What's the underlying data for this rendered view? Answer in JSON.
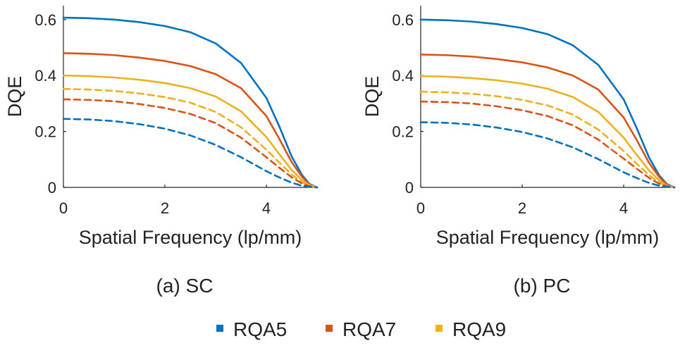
{
  "chart_data": [
    {
      "type": "line",
      "caption": "(a) SC",
      "xlabel": "Spatial Frequency  (lp/mm)",
      "ylabel": "DQE",
      "xlim": [
        0,
        5
      ],
      "ylim": [
        0,
        0.65
      ],
      "xticks": [
        0,
        2,
        4
      ],
      "xtick_labels": [
        "0",
        "2",
        "4"
      ],
      "yticks": [
        0,
        0.2,
        0.4,
        0.6
      ],
      "ytick_labels": [
        "0",
        "0.2",
        "0.4",
        "0.6"
      ],
      "grid": false,
      "x": [
        0,
        0.5,
        1.0,
        1.5,
        2.0,
        2.5,
        3.0,
        3.5,
        4.0,
        4.25,
        4.5,
        4.7,
        4.85,
        5.0
      ],
      "series": [
        {
          "name": "RQA5",
          "color": "#0072BD",
          "style": "solid",
          "values": [
            0.607,
            0.605,
            0.6,
            0.591,
            0.577,
            0.555,
            0.515,
            0.445,
            0.32,
            0.22,
            0.11,
            0.045,
            0.012,
            0.0
          ]
        },
        {
          "name": "RQA7",
          "color": "#D95319",
          "style": "solid",
          "values": [
            0.48,
            0.478,
            0.473,
            0.464,
            0.452,
            0.434,
            0.405,
            0.355,
            0.255,
            0.175,
            0.09,
            0.038,
            0.01,
            0.0
          ]
        },
        {
          "name": "RQA9",
          "color": "#EDB120",
          "style": "solid",
          "values": [
            0.4,
            0.398,
            0.393,
            0.385,
            0.373,
            0.355,
            0.325,
            0.272,
            0.18,
            0.12,
            0.062,
            0.026,
            0.008,
            0.0
          ]
        },
        {
          "name": "RQA9",
          "color": "#EDB120",
          "style": "dashed",
          "values": [
            0.352,
            0.35,
            0.345,
            0.336,
            0.323,
            0.303,
            0.27,
            0.215,
            0.135,
            0.09,
            0.046,
            0.018,
            0.005,
            0.0
          ]
        },
        {
          "name": "RQA7",
          "color": "#D95319",
          "style": "dashed",
          "values": [
            0.315,
            0.313,
            0.308,
            0.298,
            0.284,
            0.263,
            0.23,
            0.178,
            0.108,
            0.071,
            0.036,
            0.014,
            0.004,
            0.0
          ]
        },
        {
          "name": "RQA5",
          "color": "#0072BD",
          "style": "dashed",
          "values": [
            0.245,
            0.243,
            0.237,
            0.226,
            0.21,
            0.186,
            0.152,
            0.108,
            0.058,
            0.036,
            0.017,
            0.006,
            0.002,
            0.0
          ]
        }
      ]
    },
    {
      "type": "line",
      "caption": "(b) PC",
      "xlabel": "Spatial Frequency  (lp/mm)",
      "ylabel": "DQE",
      "xlim": [
        0,
        5
      ],
      "ylim": [
        0,
        0.65
      ],
      "xticks": [
        0,
        2,
        4
      ],
      "xtick_labels": [
        "0",
        "2",
        "4"
      ],
      "yticks": [
        0,
        0.2,
        0.4,
        0.6
      ],
      "ytick_labels": [
        "0",
        "0.2",
        "0.4",
        "0.6"
      ],
      "grid": false,
      "x": [
        0,
        0.5,
        1.0,
        1.5,
        2.0,
        2.5,
        3.0,
        3.5,
        4.0,
        4.25,
        4.5,
        4.7,
        4.85,
        5.0
      ],
      "series": [
        {
          "name": "RQA5",
          "color": "#0072BD",
          "style": "solid",
          "values": [
            0.6,
            0.598,
            0.593,
            0.584,
            0.57,
            0.548,
            0.508,
            0.438,
            0.315,
            0.215,
            0.107,
            0.043,
            0.012,
            0.0
          ]
        },
        {
          "name": "RQA7",
          "color": "#D95319",
          "style": "solid",
          "values": [
            0.475,
            0.473,
            0.468,
            0.459,
            0.447,
            0.429,
            0.4,
            0.35,
            0.25,
            0.172,
            0.088,
            0.037,
            0.01,
            0.0
          ]
        },
        {
          "name": "RQA9",
          "color": "#EDB120",
          "style": "solid",
          "values": [
            0.398,
            0.396,
            0.391,
            0.383,
            0.371,
            0.353,
            0.323,
            0.27,
            0.178,
            0.118,
            0.061,
            0.025,
            0.007,
            0.0
          ]
        },
        {
          "name": "RQA9",
          "color": "#EDB120",
          "style": "dashed",
          "values": [
            0.342,
            0.34,
            0.335,
            0.326,
            0.313,
            0.293,
            0.26,
            0.207,
            0.13,
            0.086,
            0.044,
            0.017,
            0.005,
            0.0
          ]
        },
        {
          "name": "RQA7",
          "color": "#D95319",
          "style": "dashed",
          "values": [
            0.307,
            0.305,
            0.3,
            0.29,
            0.276,
            0.255,
            0.222,
            0.171,
            0.103,
            0.068,
            0.034,
            0.013,
            0.004,
            0.0
          ]
        },
        {
          "name": "RQA5",
          "color": "#0072BD",
          "style": "dashed",
          "values": [
            0.233,
            0.231,
            0.225,
            0.214,
            0.198,
            0.175,
            0.143,
            0.101,
            0.054,
            0.034,
            0.016,
            0.006,
            0.002,
            0.0
          ]
        }
      ]
    }
  ],
  "legend": {
    "placement": "bottom-center",
    "items": [
      {
        "label": "RQA5",
        "color": "#0072BD"
      },
      {
        "label": "RQA7",
        "color": "#D95319"
      },
      {
        "label": "RQA9",
        "color": "#EDB120"
      }
    ]
  }
}
